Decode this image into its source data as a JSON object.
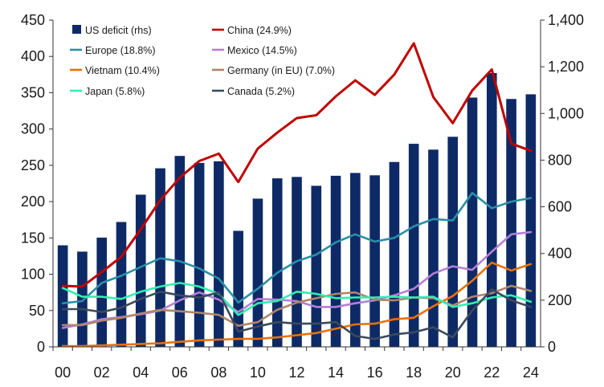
{
  "chart_data": {
    "type": "bar+line",
    "x": [
      "00",
      "01",
      "02",
      "03",
      "04",
      "05",
      "06",
      "07",
      "08",
      "09",
      "10",
      "11",
      "12",
      "13",
      "14",
      "15",
      "16",
      "17",
      "18",
      "19",
      "20",
      "21",
      "22",
      "23",
      "24"
    ],
    "x_tick_labels": [
      "00",
      "02",
      "04",
      "06",
      "08",
      "10",
      "12",
      "14",
      "16",
      "18",
      "20",
      "22",
      "24"
    ],
    "left_axis": {
      "ylim": [
        0,
        450
      ],
      "ticks": [
        0,
        50,
        100,
        150,
        200,
        250,
        300,
        350,
        400,
        450
      ]
    },
    "right_axis": {
      "ylim": [
        0,
        1400
      ],
      "ticks": [
        0,
        200,
        400,
        600,
        800,
        1000,
        1200,
        1400
      ],
      "tick_labels": [
        "0",
        "200",
        "400",
        "600",
        "800",
        "1,000",
        "1,200",
        "1,400"
      ]
    },
    "grid": false,
    "legend_position": "top, inside plot, two columns",
    "series": [
      {
        "name": "US deficit (rhs)",
        "kind": "bar",
        "axis": "right",
        "color": "#0d2a66",
        "values": [
          435,
          408,
          468,
          535,
          652,
          765,
          818,
          788,
          795,
          497,
          635,
          722,
          728,
          690,
          733,
          745,
          735,
          792,
          870,
          845,
          900,
          1068,
          1173,
          1062,
          1082
        ]
      },
      {
        "name": "China (24.9%)",
        "kind": "line",
        "axis": "left",
        "color": "#c00000",
        "values": [
          84,
          83,
          103,
          124,
          162,
          202,
          233,
          256,
          266,
          227,
          273,
          295,
          315,
          319,
          345,
          367,
          347,
          375,
          418,
          344,
          308,
          353,
          382,
          280,
          270
        ]
      },
      {
        "name": "Europe (18.8%)",
        "kind": "line",
        "axis": "left",
        "color": "#2a8fa8",
        "values": [
          60,
          63,
          88,
          98,
          110,
          122,
          118,
          108,
          94,
          61,
          80,
          102,
          118,
          127,
          144,
          155,
          145,
          150,
          166,
          176,
          174,
          212,
          191,
          200,
          205
        ]
      },
      {
        "name": "Mexico (14.5%)",
        "kind": "line",
        "axis": "left",
        "color": "#b57fd6",
        "values": [
          26,
          31,
          38,
          41,
          45,
          50,
          64,
          75,
          65,
          48,
          66,
          65,
          63,
          55,
          55,
          60,
          64,
          71,
          80,
          101,
          111,
          106,
          131,
          155,
          158
        ]
      },
      {
        "name": "Vietnam (10.4%)",
        "kind": "line",
        "axis": "left",
        "color": "#e8710a",
        "values": [
          1,
          1,
          2,
          3,
          4,
          5,
          7,
          9,
          10,
          11,
          11,
          13,
          16,
          19,
          25,
          31,
          32,
          38,
          40,
          56,
          70,
          91,
          116,
          105,
          114
        ]
      },
      {
        "name": "Germany (in EU) (7.0%)",
        "kind": "line",
        "axis": "left",
        "color": "#b0846a",
        "values": [
          30,
          30,
          36,
          40,
          46,
          51,
          49,
          47,
          44,
          29,
          34,
          51,
          61,
          67,
          73,
          75,
          65,
          64,
          68,
          67,
          57,
          69,
          74,
          84,
          77
        ]
      },
      {
        "name": "Japan (5.8%)",
        "kind": "line",
        "axis": "left",
        "color": "#2ff0b0",
        "values": [
          81,
          69,
          69,
          66,
          76,
          83,
          88,
          83,
          73,
          44,
          60,
          63,
          76,
          73,
          67,
          68,
          68,
          69,
          68,
          69,
          55,
          60,
          68,
          71,
          62
        ]
      },
      {
        "name": "Canada (5.2%)",
        "kind": "line",
        "axis": "left",
        "color": "#3c4a5c",
        "values": [
          52,
          52,
          48,
          54,
          66,
          76,
          71,
          68,
          75,
          21,
          28,
          34,
          32,
          32,
          34,
          15,
          11,
          17,
          20,
          27,
          13,
          50,
          79,
          64,
          55
        ]
      }
    ]
  }
}
